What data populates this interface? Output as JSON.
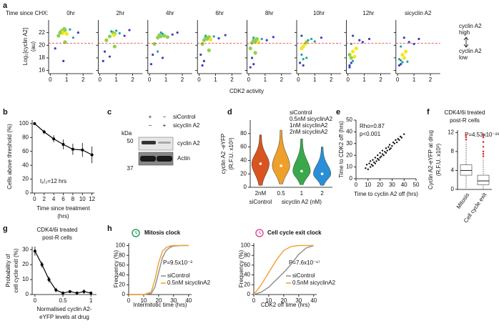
{
  "chart_data": [
    {
      "type": "scatter-grid",
      "panel": "a",
      "subtitle": "Time since CHX:",
      "subplots": [
        {
          "title": "0hr",
          "x": [
            0.7,
            0.8,
            0.9,
            0.75,
            0.85,
            0.6,
            1.0,
            1.2,
            0.5,
            1.4,
            0.3,
            0.9,
            1.7,
            0.8
          ],
          "y": [
            22.3,
            22.1,
            22.4,
            21.9,
            22.6,
            22.0,
            21.8,
            22.5,
            21.5,
            21.2,
            19.5,
            20.5,
            22,
            17.5
          ]
        },
        {
          "title": "2hr",
          "x": [
            0.8,
            0.9,
            0.7,
            0.85,
            1.0,
            0.6,
            1.2,
            0.4,
            1.5,
            0.3,
            0.9,
            0.2,
            1.8,
            0.6
          ],
          "y": [
            22.0,
            21.8,
            22.2,
            21.6,
            22.3,
            21.4,
            21.9,
            20.8,
            21.5,
            19.0,
            19.8,
            17.5,
            22.4,
            18.2
          ]
        },
        {
          "title": "4hr",
          "x": [
            0.6,
            0.7,
            0.8,
            0.5,
            0.9,
            0.7,
            1.1,
            0.3,
            1.4,
            0.2,
            0.5,
            0.1,
            1.7,
            0.8
          ],
          "y": [
            21.6,
            21.4,
            21.8,
            21.2,
            21.5,
            22.0,
            21.3,
            20.2,
            21.7,
            18.5,
            19.0,
            17.0,
            22.0,
            18.0
          ]
        },
        {
          "title": "6hr",
          "x": [
            0.4,
            0.5,
            0.3,
            0.6,
            0.4,
            0.7,
            0.2,
            0.9,
            0.1,
            1.2,
            0.3,
            0.6,
            1.6,
            0.2
          ],
          "y": [
            21.2,
            21.0,
            20.8,
            21.3,
            21.5,
            20.9,
            20.2,
            21.4,
            18.5,
            21.1,
            17.5,
            19.2,
            21.6,
            16.8
          ]
        },
        {
          "title": "8hr",
          "x": [
            0.3,
            0.4,
            0.2,
            0.5,
            0.3,
            0.6,
            0.1,
            0.8,
            0.2,
            1.1,
            0.3,
            0.4,
            1.5,
            0.1
          ],
          "y": [
            20.8,
            20.6,
            20.4,
            21.0,
            21.2,
            20.5,
            19.5,
            21.0,
            18.0,
            20.8,
            17.0,
            18.8,
            21.3,
            16.5
          ]
        },
        {
          "title": "10hr",
          "x": [
            0.3,
            0.2,
            0.4,
            0.3,
            0.5,
            0.2,
            0.6,
            0.1,
            0.8,
            0.3,
            1.0,
            0.2,
            1.4,
            0.5
          ],
          "y": [
            19.8,
            19.5,
            20.2,
            17.8,
            20.5,
            18.5,
            20.8,
            17.2,
            21.0,
            16.8,
            20.6,
            21.5,
            21.2,
            18.0
          ]
        },
        {
          "title": "12hr",
          "x": [
            0.2,
            0.3,
            0.1,
            0.2,
            0.3,
            0.4,
            0.1,
            0.5,
            0.2,
            0.7,
            0.3,
            0.9,
            1.3,
            0.1
          ],
          "y": [
            18.0,
            17.5,
            18.5,
            17.2,
            19.0,
            18.2,
            16.8,
            19.5,
            20.2,
            20.8,
            21.5,
            20.5,
            21.0,
            16.5
          ]
        },
        {
          "title": "sicyclin A2",
          "x": [
            0.2,
            0.3,
            0.1,
            0.2,
            0.4,
            0.3,
            0.1,
            0.5,
            0.2,
            0.7,
            0.4,
            1.0,
            1.3,
            0.6
          ],
          "y": [
            17.6,
            17.3,
            17.8,
            17.0,
            18.0,
            18.5,
            16.8,
            19.0,
            19.8,
            20.5,
            21.2,
            20.2,
            21.0,
            17.4
          ]
        }
      ],
      "xlim": [
        -0.1,
        2.6
      ],
      "xticks": [
        0,
        1,
        2
      ],
      "ylim": [
        15.5,
        24
      ],
      "yticks": [
        16,
        18,
        20,
        22
      ],
      "threshold": 20.3,
      "threshold_color": "#e03030",
      "ylabel": [
        "Log₂[cyclin A2]",
        "(au)"
      ],
      "xlabel": "CDK2 activity",
      "annotations": [
        "cyclin A2",
        "high",
        "cyclin A2",
        "low"
      ]
    },
    {
      "type": "line",
      "panel": "b",
      "x": [
        0,
        2,
        4,
        6,
        8,
        10,
        12
      ],
      "values": [
        100,
        88,
        78,
        70,
        63,
        62,
        55
      ],
      "errors": [
        0,
        3,
        5,
        7,
        8,
        10,
        12
      ],
      "color": "#000000",
      "xlim": [
        -0.5,
        12.5
      ],
      "xticks": [
        0,
        2,
        4,
        6,
        8,
        10,
        12
      ],
      "ylim": [
        0,
        105
      ],
      "yticks": [
        0,
        20,
        40,
        60,
        80,
        100
      ],
      "ylabel": "Cells above threshold (%)",
      "xlabel": [
        "Time since treatment",
        "(hrs)"
      ],
      "annotations": [
        "t₁/₂=12 hrs"
      ]
    },
    {
      "type": "violin",
      "panel": "d",
      "categories": [
        "2nM",
        "0.5",
        "1",
        "2"
      ],
      "values": [
        35,
        32,
        24,
        20
      ],
      "mins": [
        3,
        5,
        4,
        3
      ],
      "maxs": [
        78,
        85,
        72,
        60
      ],
      "colors": [
        "#d9541e",
        "#eea02a",
        "#3aa84a",
        "#2a8fd6"
      ],
      "legend": [
        "siControl",
        "0.5nM sicyclinA2",
        "1nM sicyclinA2",
        "2nM sicyclinA2"
      ],
      "group_labels": [
        "siControl",
        "sicyclin A2 (nM)"
      ],
      "ylim": [
        0,
        100
      ],
      "yticks": [
        0,
        20,
        40,
        60,
        80
      ],
      "ylabel": [
        "cyclin A2 -eYFP",
        "(R.F.U. x10³)"
      ]
    },
    {
      "type": "scatter",
      "panel": "e",
      "x": [
        8,
        9,
        10,
        11,
        12,
        12,
        13,
        14,
        14,
        15,
        16,
        16,
        17,
        18,
        18,
        19,
        20,
        20,
        21,
        22,
        22,
        23,
        24,
        25,
        25,
        26,
        27,
        28,
        28,
        29,
        30,
        31,
        32,
        33,
        34,
        35,
        36,
        37,
        38,
        40
      ],
      "y": [
        9,
        12,
        8,
        13,
        10,
        15,
        12,
        11,
        16,
        14,
        13,
        18,
        15,
        17,
        20,
        16,
        18,
        22,
        19,
        21,
        24,
        20,
        23,
        22,
        26,
        24,
        27,
        25,
        29,
        26,
        28,
        31,
        30,
        33,
        31,
        34,
        33,
        36,
        35,
        38
      ],
      "color": "#111111",
      "xlim": [
        0,
        50
      ],
      "xticks": [
        0,
        10,
        20,
        30,
        40,
        50
      ],
      "ylim": [
        0,
        50
      ],
      "yticks": [
        0,
        10,
        20,
        30,
        40,
        50
      ],
      "xlabel": "Time to cyclin A2 off (hrs)",
      "ylabel": "Time to CDK2 off (hrs)",
      "annotations": [
        "Rho=0.87",
        "p<0.001"
      ]
    },
    {
      "type": "box",
      "panel": "f",
      "title": [
        "CDK4/6i treated",
        "post-R cells"
      ],
      "categories": [
        "Mitosis",
        "Cell cycle exit"
      ],
      "whisker_low": [
        0.3,
        0
      ],
      "q1": [
        3,
        1
      ],
      "median": [
        4,
        1.8
      ],
      "q3": [
        5.2,
        3
      ],
      "whisker_high": [
        10,
        6.5
      ],
      "outliers": [
        [
          10.5,
          11,
          11.5
        ],
        [
          7,
          7.5,
          8,
          9,
          10,
          11,
          11.5
        ]
      ],
      "outlier_color": "#e03030",
      "ylim": [
        0,
        12.5
      ],
      "yticks": [
        0,
        4,
        8,
        12
      ],
      "ylabel": [
        "Cyclin A2-eYFP at drug",
        "(R.F.U. x10³)"
      ],
      "annotations": [
        "P=4.53x10⁻²⁹"
      ]
    },
    {
      "type": "line",
      "panel": "g",
      "title": [
        "CDK4/6i treated",
        "post-R cells"
      ],
      "x": [
        0,
        0.125,
        0.25,
        0.375,
        0.5,
        0.625,
        0.75,
        0.875,
        1
      ],
      "values": [
        29,
        20,
        10,
        3,
        1,
        2,
        1,
        2,
        1
      ],
      "errors": [
        3,
        2,
        2,
        1.5,
        1,
        1,
        1,
        1.5,
        1
      ],
      "color": "#000000",
      "xlim": [
        -0.05,
        1.1
      ],
      "xticks": [
        0,
        0.5,
        1
      ],
      "ylim": [
        0,
        32
      ],
      "yticks": [
        0,
        10,
        20,
        30
      ],
      "ylabel": [
        "Probability of",
        "cell cycle exit (%)"
      ],
      "xlabel": [
        "Normalised cyclin A2-",
        "eYFP levels at drug"
      ]
    },
    {
      "type": "cdf",
      "panel": "h",
      "title": "Mitosis clock",
      "icon_color": "#2ca25f",
      "x": [
        0,
        5,
        10,
        15,
        17.5,
        20,
        22.5,
        25,
        27.5,
        30,
        35,
        40
      ],
      "series": [
        {
          "name": "siControl",
          "color": "#8c8c8c",
          "values": [
            0,
            0,
            0,
            2,
            15,
            45,
            75,
            90,
            96,
            99,
            100,
            100
          ]
        },
        {
          "name": "0.5nM sicyclinA2",
          "color": "#f0a030",
          "values": [
            0,
            0,
            0,
            5,
            30,
            65,
            88,
            96,
            99,
            100,
            100,
            100
          ]
        }
      ],
      "xlim": [
        0,
        42
      ],
      "xticks": [
        0,
        10,
        20,
        30,
        40
      ],
      "ylim": [
        0,
        105
      ],
      "yticks": [
        0,
        20,
        40,
        60,
        80,
        100
      ],
      "ylabel": "Frequency (%)",
      "xlabel": "Intermitotic time (hrs)",
      "annotations": [
        "P=9.5x10⁻³"
      ]
    },
    {
      "type": "cdf",
      "title": "Cell cycle exit clock",
      "icon_color": "#e0509a",
      "x": [
        0,
        5,
        10,
        15,
        20,
        25,
        30,
        35,
        40
      ],
      "series": [
        {
          "name": "siControl",
          "color": "#8c8c8c",
          "values": [
            0,
            5,
            15,
            30,
            45,
            62,
            82,
            95,
            100
          ]
        },
        {
          "name": "0.5nM sicyclinA2",
          "color": "#f0a030",
          "values": [
            0,
            20,
            45,
            70,
            90,
            98,
            100,
            100,
            100
          ]
        }
      ],
      "xlim": [
        0,
        42
      ],
      "xticks": [
        0,
        10,
        20,
        30,
        40
      ],
      "ylim": [
        0,
        105
      ],
      "yticks": [
        0,
        20,
        40,
        60,
        80,
        100
      ],
      "ylabel": "Frequency (%)",
      "xlabel": "CDK2 off time (hrs)",
      "annotations": [
        "P=7.6x10⁻¹⁷"
      ]
    }
  ],
  "blot": {
    "panel": "c",
    "rows": [
      {
        "name": "siControl",
        "lanes": [
          "+",
          "−"
        ]
      },
      {
        "name": "sicyclin A2",
        "lanes": [
          "−",
          "+"
        ]
      }
    ],
    "unit": "kDa",
    "bands": [
      {
        "name": "cyclin A2",
        "marker": 50
      },
      {
        "name": "Actin",
        "marker": 37
      }
    ]
  }
}
